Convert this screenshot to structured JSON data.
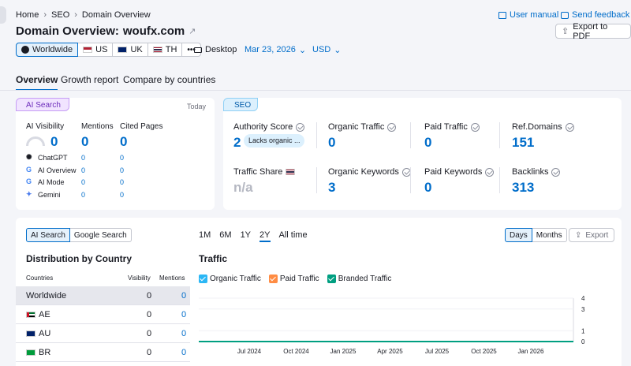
{
  "breadcrumb": {
    "home": "Home",
    "seo": "SEO",
    "current": "Domain Overview"
  },
  "header": {
    "title_prefix": "Domain Overview:",
    "domain": "woufx.com",
    "user_manual": "User manual",
    "send_feedback": "Send feedback",
    "export_pdf": "Export to PDF"
  },
  "filters": {
    "regions": [
      "Worldwide",
      "US",
      "UK",
      "TH"
    ],
    "more": "•••",
    "device": "Desktop",
    "date": "Mar 23, 2026",
    "currency": "USD"
  },
  "tabs": [
    "Overview",
    "Growth report",
    "Compare by countries"
  ],
  "ai_search": {
    "badge": "AI Search",
    "today": "Today",
    "headers": {
      "visibility": "AI Visibility",
      "mentions": "Mentions",
      "cited": "Cited Pages"
    },
    "visibility_value": "0",
    "mentions_value": "0",
    "cited_value": "0",
    "sources": [
      {
        "name": "ChatGPT",
        "mentions": "0",
        "cited": "0",
        "icon": "chatgpt-icon"
      },
      {
        "name": "AI Overview",
        "mentions": "0",
        "cited": "0",
        "icon": "google-icon"
      },
      {
        "name": "AI Mode",
        "mentions": "0",
        "cited": "0",
        "icon": "google-icon"
      },
      {
        "name": "Gemini",
        "mentions": "0",
        "cited": "0",
        "icon": "gemini-icon"
      }
    ]
  },
  "seo": {
    "badge": "SEO",
    "authority_label": "Authority Score",
    "authority_value": "2",
    "authority_pill": "Lacks organic ...",
    "organic_traffic_label": "Organic Traffic",
    "organic_traffic_value": "0",
    "paid_traffic_label": "Paid Traffic",
    "paid_traffic_value": "0",
    "ref_domains_label": "Ref.Domains",
    "ref_domains_value": "151",
    "traffic_share_label": "Traffic Share",
    "traffic_share_value": "n/a",
    "organic_keywords_label": "Organic Keywords",
    "organic_keywords_value": "3",
    "paid_keywords_label": "Paid Keywords",
    "paid_keywords_value": "0",
    "backlinks_label": "Backlinks",
    "backlinks_value": "313"
  },
  "distribution": {
    "toggle": [
      "AI Search",
      "Google Search"
    ],
    "title": "Distribution by Country",
    "col_countries": "Countries",
    "col_visibility": "Visibility",
    "col_mentions": "Mentions",
    "rows": [
      {
        "country": "Worldwide",
        "visibility": "0",
        "mentions": "0"
      },
      {
        "country": "AE",
        "visibility": "0",
        "mentions": "0"
      },
      {
        "country": "AU",
        "visibility": "0",
        "mentions": "0"
      },
      {
        "country": "BR",
        "visibility": "0",
        "mentions": "0"
      }
    ]
  },
  "traffic": {
    "ranges": [
      "1M",
      "6M",
      "1Y",
      "2Y",
      "All time"
    ],
    "active_range": "2Y",
    "granularity": [
      "Days",
      "Months"
    ],
    "export": "Export",
    "title": "Traffic",
    "legend": [
      {
        "label": "Organic Traffic",
        "color": "#2bb7f5"
      },
      {
        "label": "Paid Traffic",
        "color": "#ff8c43"
      },
      {
        "label": "Branded Traffic",
        "color": "#009f81"
      }
    ]
  },
  "chart_data": {
    "type": "line",
    "title": "Traffic",
    "x_ticks": [
      "Jul 2024",
      "Oct 2024",
      "Jan 2025",
      "Apr 2025",
      "Jul 2025",
      "Oct 2025",
      "Jan 2026"
    ],
    "y_ticks": [
      "0",
      "1",
      "3",
      "4"
    ],
    "ylim": [
      0,
      4
    ],
    "series": [
      {
        "name": "Organic Traffic",
        "values": [
          0,
          0,
          0,
          0,
          0,
          0,
          0
        ]
      },
      {
        "name": "Branded Traffic",
        "values": [
          0,
          0,
          0,
          0,
          0,
          0,
          0
        ]
      }
    ]
  }
}
